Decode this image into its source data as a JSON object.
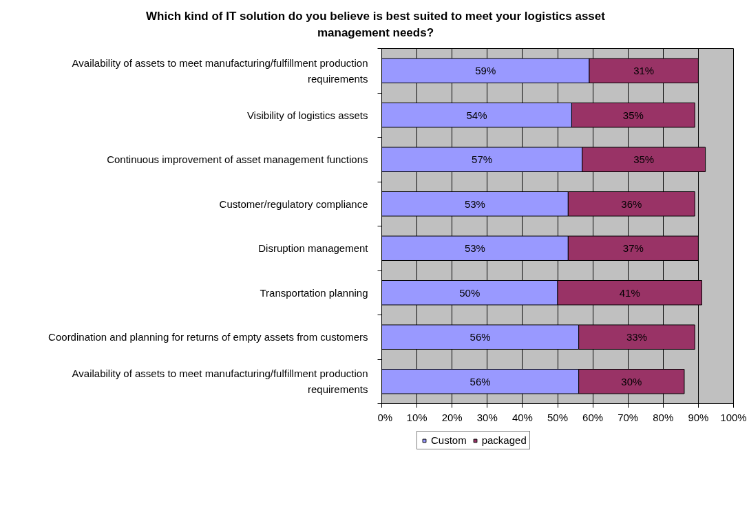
{
  "chart_data": {
    "type": "bar",
    "orientation": "horizontal",
    "stacked": true,
    "title": "Which kind of IT solution do you believe is best suited to meet your logistics asset management needs?",
    "categories": [
      "Availability of assets to meet manufacturing/fulfillment production requirements",
      "Visibility of logistics assets",
      "Continuous improvement of asset management functions",
      "Customer/regulatory compliance",
      "Disruption management",
      "Transportation planning",
      "Coordination and planning for returns of empty assets from customers",
      "Availability of assets to meet manufacturing/fulfillment production requirements"
    ],
    "series": [
      {
        "name": "Custom",
        "color": "#9999ff",
        "values": [
          59,
          54,
          57,
          53,
          53,
          50,
          56,
          56
        ],
        "value_labels": [
          "59%",
          "54%",
          "57%",
          "53%",
          "53%",
          "50%",
          "56%",
          "56%"
        ]
      },
      {
        "name": "packaged",
        "color": "#993366",
        "values": [
          31,
          35,
          35,
          36,
          37,
          41,
          33,
          30
        ],
        "value_labels": [
          "31%",
          "35%",
          "35%",
          "36%",
          "37%",
          "41%",
          "33%",
          "30%"
        ]
      }
    ],
    "xlim": [
      0,
      100
    ],
    "xticks": [
      {
        "value": 0,
        "label": "0%"
      },
      {
        "value": 10,
        "label": "10%"
      },
      {
        "value": 20,
        "label": "20%"
      },
      {
        "value": 30,
        "label": "30%"
      },
      {
        "value": 40,
        "label": "40%"
      },
      {
        "value": 50,
        "label": "50%"
      },
      {
        "value": 60,
        "label": "60%"
      },
      {
        "value": 70,
        "label": "70%"
      },
      {
        "value": 80,
        "label": "80%"
      },
      {
        "value": 90,
        "label": "90%"
      },
      {
        "value": 100,
        "label": "100%"
      }
    ],
    "grid": "x",
    "legend": "bottom"
  }
}
